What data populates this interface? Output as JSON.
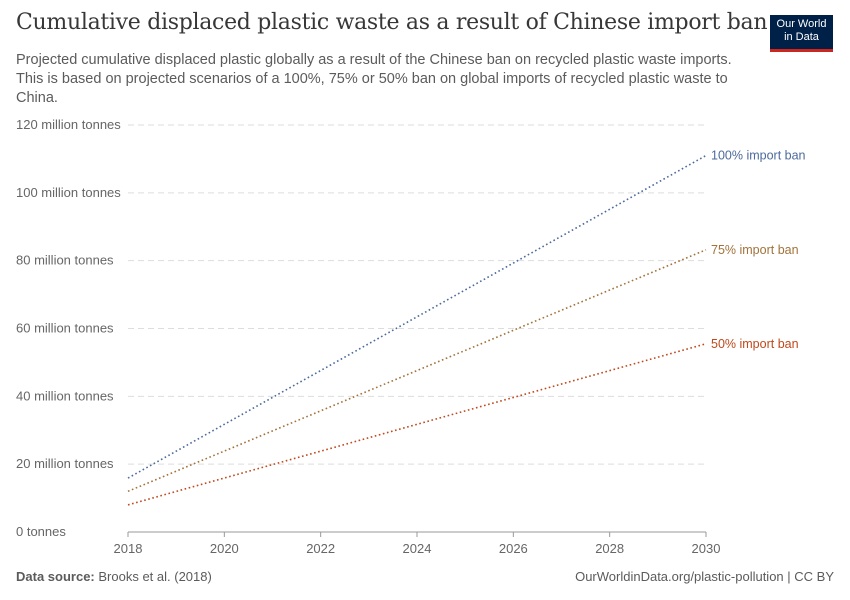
{
  "header": {
    "title": "Cumulative displaced plastic waste as a result of Chinese import ban",
    "subtitle": "Projected cumulative displaced plastic globally as a result of the Chinese ban on recycled plastic waste imports. This is based on projected scenarios of a 100%, 75% or 50% ban on global imports of recycled plastic waste to China.",
    "logo_line1": "Our World",
    "logo_line2": "in Data"
  },
  "footer": {
    "source_label": "Data source:",
    "source": "Brooks et al. (2018)",
    "url": "OurWorldinData.org/plastic-pollution | CC BY"
  },
  "chart_data": {
    "type": "line",
    "x": [
      2018,
      2030
    ],
    "xticks": [
      "2018",
      "2020",
      "2022",
      "2024",
      "2026",
      "2028",
      "2030"
    ],
    "xlim": [
      2018,
      2030
    ],
    "ylim": [
      0,
      120
    ],
    "yticks": [
      "0 tonnes",
      "20 million tonnes",
      "40 million tonnes",
      "60 million tonnes",
      "80 million tonnes",
      "100 million tonnes",
      "120 million tonnes"
    ],
    "grid": "horizontal dashed",
    "legend": "end-of-line labels",
    "line_style": "dotted",
    "series": [
      {
        "name": "100% import ban",
        "values": [
          15.9,
          111
        ],
        "color": "#4c6a9c"
      },
      {
        "name": "75% import ban",
        "values": [
          12,
          83.2
        ],
        "color": "#a2723a"
      },
      {
        "name": "50% import ban",
        "values": [
          8,
          55.5
        ],
        "color": "#c0481c"
      }
    ]
  }
}
